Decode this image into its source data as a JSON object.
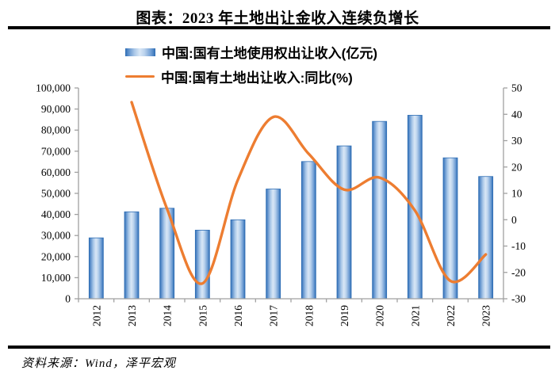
{
  "title": "图表：2023 年土地出让金收入连续负增长",
  "source": "资料来源：Wind，泽平宏观",
  "colors": {
    "bar_edge": "#2E6DB4",
    "bar_mid": "#A9C7E8",
    "bar_light": "#D9E7F6",
    "line": "#ED7D31",
    "axis": "#A0A0A0",
    "text": "#000000",
    "rule": "#000000"
  },
  "chart_data": {
    "type": "bar+line",
    "title": "图表：2023 年土地出让金收入连续负增长",
    "categories": [
      "2012",
      "2013",
      "2014",
      "2015",
      "2016",
      "2017",
      "2018",
      "2019",
      "2020",
      "2021",
      "2022",
      "2023"
    ],
    "series": [
      {
        "name": "中国:国有土地使用权出让收入(亿元)",
        "type": "bar",
        "axis": "left",
        "values": [
          28886,
          41250,
          42940,
          32547,
          37457,
          52059,
          65096,
          72517,
          84142,
          87051,
          66854,
          57996
        ]
      },
      {
        "name": "中国:国有土地出让收入:同比(%)",
        "type": "line",
        "axis": "right",
        "smooth": true,
        "values": [
          null,
          44.6,
          4.1,
          -24.2,
          15.1,
          39.0,
          25.0,
          11.4,
          16.0,
          3.5,
          -23.2,
          -13.2
        ]
      }
    ],
    "left_axis": {
      "min": 0,
      "max": 100000,
      "step": 10000,
      "tick_format": "comma"
    },
    "right_axis": {
      "min": -30,
      "max": 50,
      "step": 10
    },
    "legend_position": "top",
    "grid": false
  }
}
